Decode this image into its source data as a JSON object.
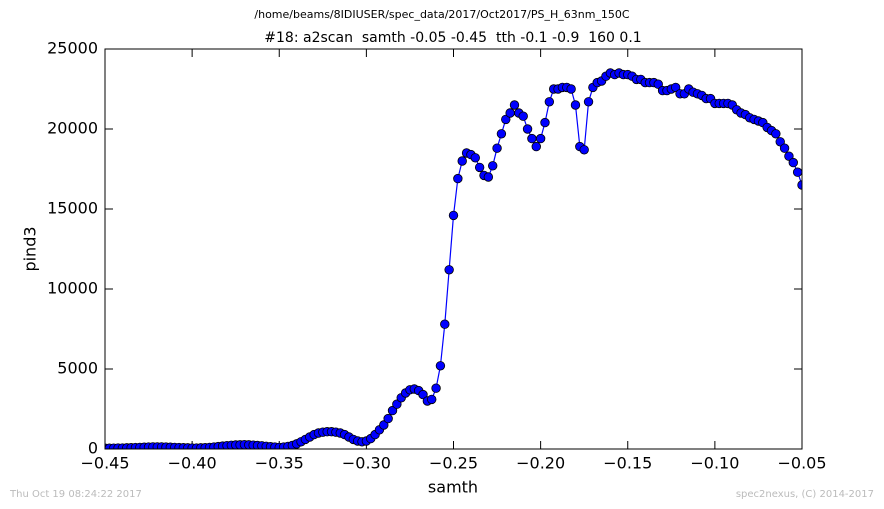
{
  "chart_data": {
    "type": "line",
    "suptitle": "/home/beams/8IDIUSER/spec_data/2017/Oct2017/PS_H_63nm_150C",
    "title": "#18: a2scan  samth -0.05 -0.45  tth -0.1 -0.9  160 0.1",
    "x_label": "samth",
    "y_label": "pind3",
    "footer_left": "Thu Oct 19 08:24:22 2017",
    "footer_right": "spec2nexus, (C) 2014-2017",
    "color": "#0000ff",
    "marker": "circle",
    "x": [
      -0.45,
      -0.4475,
      -0.445,
      -0.4425,
      -0.44,
      -0.4375,
      -0.435,
      -0.4325,
      -0.43,
      -0.4275,
      -0.425,
      -0.4225,
      -0.42,
      -0.4175,
      -0.415,
      -0.4125,
      -0.41,
      -0.4075,
      -0.405,
      -0.4025,
      -0.4,
      -0.3975,
      -0.395,
      -0.3925,
      -0.39,
      -0.3875,
      -0.385,
      -0.3825,
      -0.38,
      -0.3775,
      -0.375,
      -0.3725,
      -0.37,
      -0.3675,
      -0.365,
      -0.3625,
      -0.36,
      -0.3575,
      -0.355,
      -0.3525,
      -0.35,
      -0.3475,
      -0.345,
      -0.3425,
      -0.34,
      -0.3375,
      -0.335,
      -0.3325,
      -0.33,
      -0.3275,
      -0.325,
      -0.3225,
      -0.32,
      -0.3175,
      -0.315,
      -0.3125,
      -0.31,
      -0.3075,
      -0.305,
      -0.3025,
      -0.3,
      -0.2975,
      -0.295,
      -0.2925,
      -0.29,
      -0.2875,
      -0.285,
      -0.2825,
      -0.28,
      -0.2775,
      -0.275,
      -0.2725,
      -0.27,
      -0.2675,
      -0.265,
      -0.2625,
      -0.26,
      -0.2575,
      -0.255,
      -0.2525,
      -0.25,
      -0.2475,
      -0.245,
      -0.2425,
      -0.24,
      -0.2375,
      -0.235,
      -0.2325,
      -0.23,
      -0.2275,
      -0.225,
      -0.2225,
      -0.22,
      -0.2175,
      -0.215,
      -0.2125,
      -0.21,
      -0.2075,
      -0.205,
      -0.2025,
      -0.2,
      -0.1975,
      -0.195,
      -0.1925,
      -0.19,
      -0.1875,
      -0.185,
      -0.1825,
      -0.18,
      -0.1775,
      -0.175,
      -0.1725,
      -0.17,
      -0.1675,
      -0.165,
      -0.1625,
      -0.16,
      -0.1575,
      -0.155,
      -0.1525,
      -0.15,
      -0.1475,
      -0.145,
      -0.1425,
      -0.14,
      -0.1375,
      -0.135,
      -0.1325,
      -0.13,
      -0.1275,
      -0.125,
      -0.1225,
      -0.12,
      -0.1175,
      -0.115,
      -0.1125,
      -0.11,
      -0.1075,
      -0.105,
      -0.1025,
      -0.1,
      -0.0975,
      -0.095,
      -0.0925,
      -0.09,
      -0.0875,
      -0.085,
      -0.0825,
      -0.08,
      -0.0775,
      -0.075,
      -0.0725,
      -0.07,
      -0.0675,
      -0.065,
      -0.0625,
      -0.06,
      -0.0575,
      -0.055,
      -0.0525,
      -0.05
    ],
    "values": [
      50,
      50,
      50,
      60,
      60,
      70,
      80,
      90,
      100,
      110,
      120,
      130,
      130,
      130,
      120,
      110,
      100,
      90,
      80,
      70,
      60,
      60,
      70,
      80,
      100,
      120,
      150,
      180,
      210,
      230,
      250,
      260,
      270,
      260,
      240,
      220,
      200,
      170,
      140,
      120,
      100,
      120,
      160,
      220,
      320,
      450,
      600,
      750,
      900,
      1000,
      1050,
      1080,
      1080,
      1050,
      1000,
      900,
      750,
      600,
      500,
      450,
      500,
      650,
      900,
      1200,
      1500,
      1900,
      2400,
      2800,
      3200,
      3500,
      3700,
      3750,
      3650,
      3400,
      3000,
      3100,
      3800,
      5200,
      7800,
      11200,
      14600,
      16900,
      18000,
      18500,
      18400,
      18200,
      17600,
      17100,
      17000,
      17700,
      18800,
      19700,
      20600,
      21000,
      21500,
      21000,
      20800,
      20000,
      19400,
      18900,
      19400,
      20400,
      21700,
      22500,
      22500,
      22600,
      22600,
      22500,
      21500,
      18900,
      18700,
      21700,
      22600,
      22900,
      23000,
      23300,
      23500,
      23400,
      23500,
      23400,
      23400,
      23300,
      23100,
      23100,
      22900,
      22900,
      22900,
      22800,
      22400,
      22400,
      22500,
      22600,
      22200,
      22200,
      22500,
      22300,
      22200,
      22100,
      21900,
      21900,
      21600,
      21600,
      21600,
      21600,
      21500,
      21200,
      21000,
      20900,
      20700,
      20600,
      20500,
      20400,
      20100,
      19900,
      19700,
      19200,
      18800,
      18300,
      17900,
      17300,
      16500
    ],
    "xlim": [
      -0.45,
      -0.05
    ],
    "xticks": [
      {
        "value": -0.45,
        "label": "−0.45"
      },
      {
        "value": -0.4,
        "label": "−0.40"
      },
      {
        "value": -0.35,
        "label": "−0.35"
      },
      {
        "value": -0.3,
        "label": "−0.30"
      },
      {
        "value": -0.25,
        "label": "−0.25"
      },
      {
        "value": -0.2,
        "label": "−0.20"
      },
      {
        "value": -0.15,
        "label": "−0.15"
      },
      {
        "value": -0.1,
        "label": "−0.10"
      },
      {
        "value": -0.05,
        "label": "−0.05"
      }
    ],
    "ylim": [
      0,
      25000
    ],
    "yticks": [
      0,
      5000,
      10000,
      15000,
      20000,
      25000
    ],
    "grid": false
  }
}
